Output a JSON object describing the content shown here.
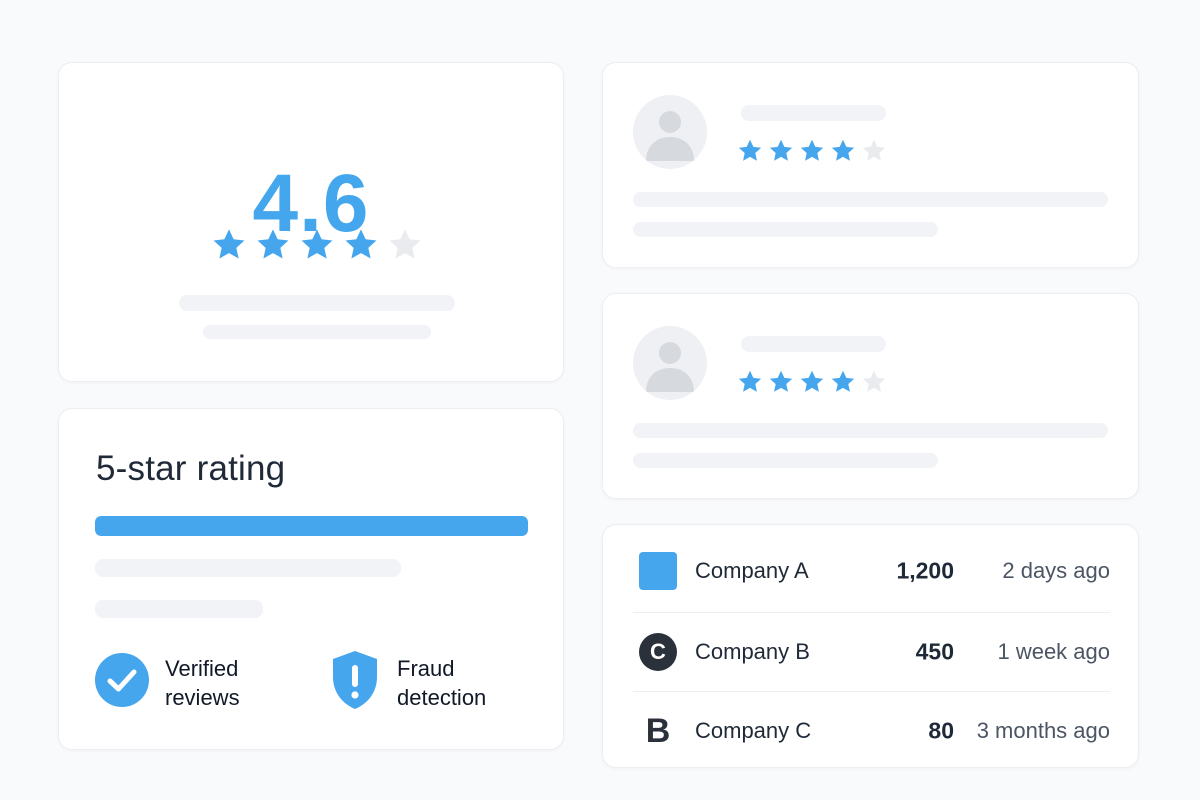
{
  "colors": {
    "accent": "#45a6ee",
    "star_empty": "#e9ebef",
    "skeleton": "#f1f3f6",
    "text_dark": "#1f2937",
    "logo_dark": "#2b313a"
  },
  "score_card": {
    "score": "4.6",
    "stars_filled": 4,
    "stars_total": 5
  },
  "rating_card": {
    "title": "5-star rating",
    "progress": 1.0,
    "features": [
      {
        "icon": "check-circle-icon",
        "label_line1": "Verified",
        "label_line2": "reviews"
      },
      {
        "icon": "shield-alert-icon",
        "label_line1": "Fraud",
        "label_line2": "detection"
      }
    ]
  },
  "reviews": [
    {
      "avatar_icon": "user-avatar-icon",
      "stars_filled": 4,
      "stars_total": 5
    },
    {
      "avatar_icon": "user-avatar-icon",
      "stars_filled": 4,
      "stars_total": 5
    }
  ],
  "companies": [
    {
      "logo_icon": "blue-square-logo-icon",
      "logo_text": "",
      "name": "Company A",
      "count": "1,200",
      "time": "2 days ago"
    },
    {
      "logo_icon": "c-circle-logo-icon",
      "logo_text": "C",
      "name": "Company B",
      "count": "450",
      "time": "1 week ago"
    },
    {
      "logo_icon": "b-letter-logo-icon",
      "logo_text": "B",
      "name": "Company C",
      "count": "80",
      "time": "3 months ago"
    }
  ]
}
